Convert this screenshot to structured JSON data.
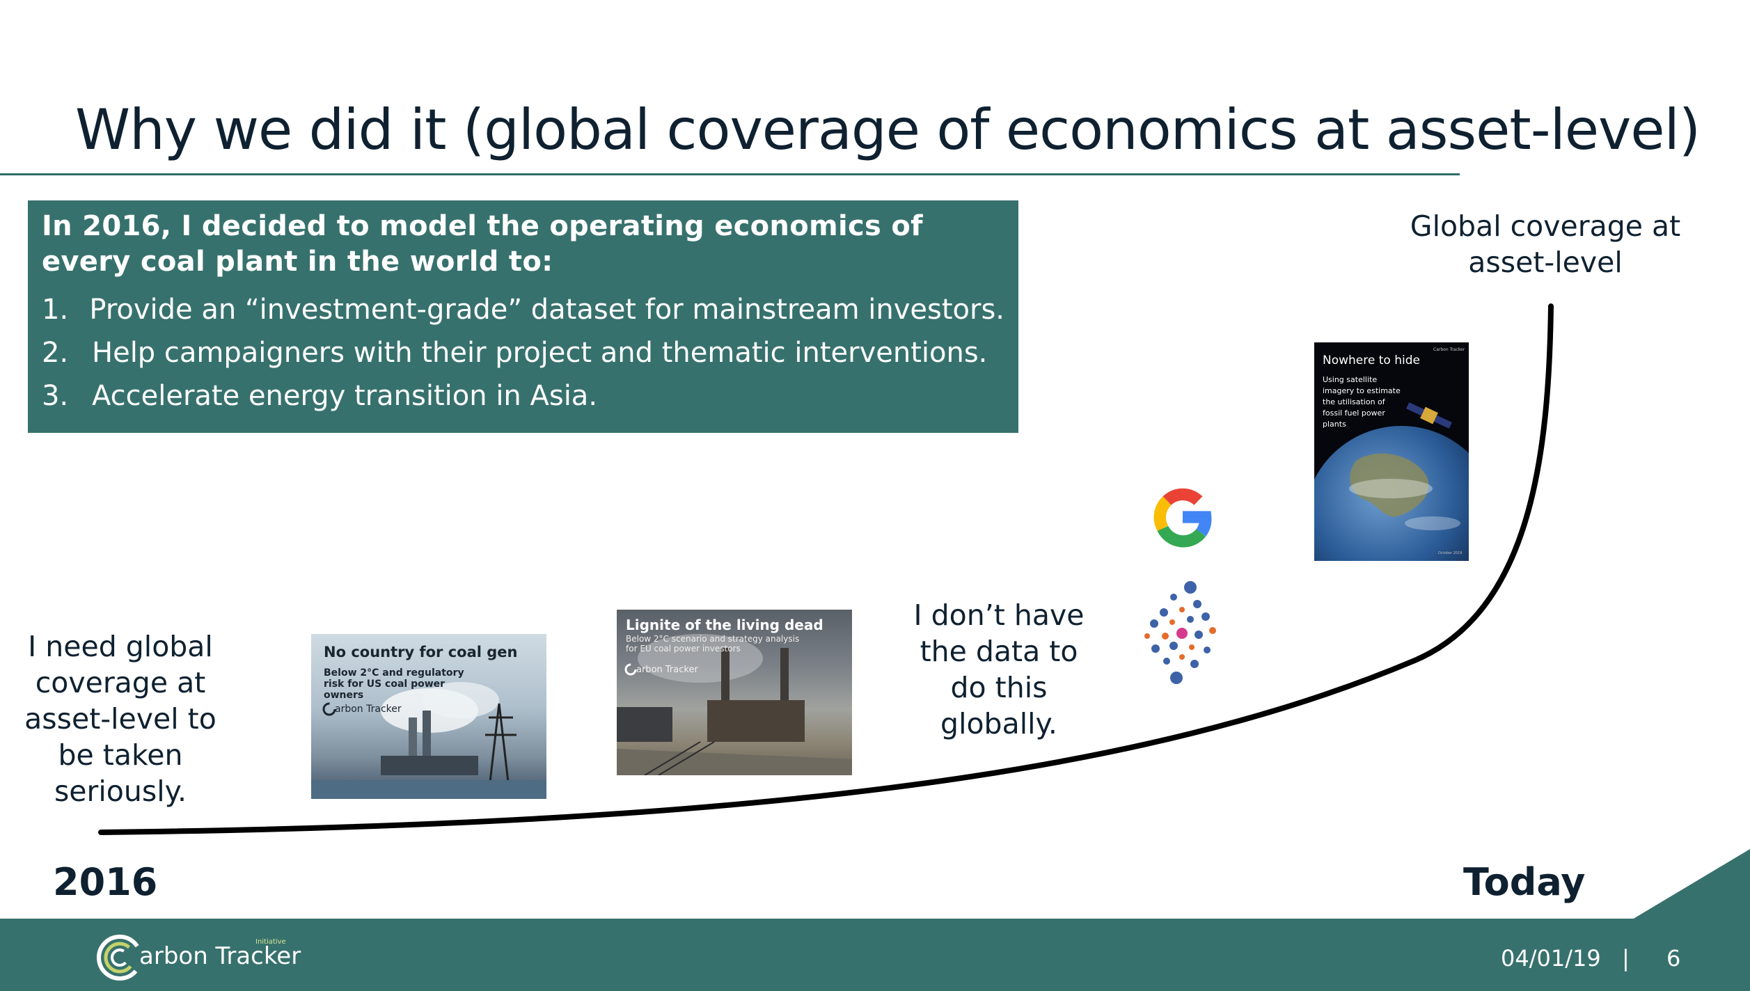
{
  "title": "Why we did it (global coverage of economics at asset-level)",
  "intro": {
    "text": "In 2016, I decided to model the operating economics of every coal plant in the world to:",
    "items": [
      {
        "num": "1.",
        "text": "Provide an “investment-grade” dataset for mainstream investors."
      },
      {
        "num": "2.",
        "text": "Help campaigners with their project and thematic interventions."
      },
      {
        "num": "3.",
        "text": "Accelerate energy transition in Asia."
      }
    ]
  },
  "labels": {
    "start_need": "I need global coverage at asset-level to be taken seriously.",
    "no_data": "I don’t have the data to do this globally.",
    "global_coverage": "Global coverage at asset-level"
  },
  "timeline": {
    "start": "2016",
    "end": "Today"
  },
  "reports": [
    {
      "title": "No country for coal gen",
      "subtitle": "Below 2°C and regulatory risk for US coal power owners",
      "brand": "arbon Tracker"
    },
    {
      "title": "Lignite of the living dead",
      "subtitle": "Below 2°C scenario and strategy analysis for EU coal power investors",
      "brand": "arbon Tracker"
    },
    {
      "title": "Nowhere to hide",
      "subtitle": "Using satellite imagery to estimate the utilisation of fossil fuel power plants",
      "brand": "Carbon Tracker",
      "date": "October 2019"
    }
  ],
  "footer": {
    "logo_text": "arbon Tracker",
    "logo_small": "Initiative",
    "date": "04/01/19",
    "separator": "|",
    "page": "6"
  },
  "colors": {
    "teal": "#37716d",
    "dark_text": "#0f2130",
    "google_blue": "#4285F4",
    "google_red": "#EA4335",
    "google_yellow": "#FBBC05",
    "google_green": "#34A853"
  },
  "icons": [
    "google-logo-icon",
    "data-network-icon",
    "carbon-tracker-logo-icon"
  ]
}
